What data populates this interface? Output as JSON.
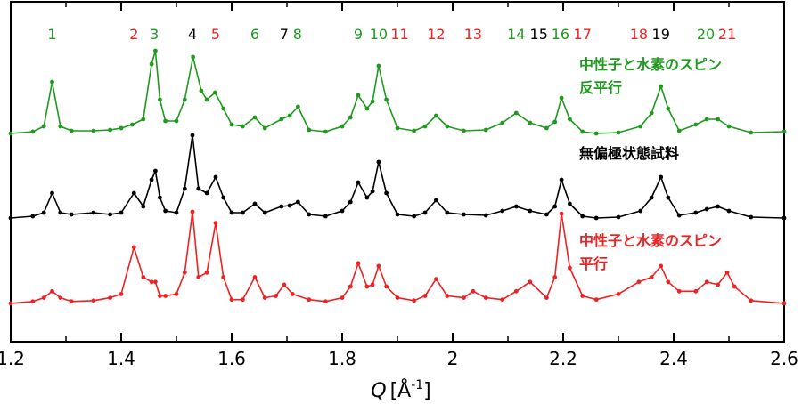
{
  "chart_data": {
    "type": "line",
    "xlabel": "Q [Å⁻¹]",
    "xlabel_symbol": "Q",
    "xlabel_unit": "[Å",
    "xlabel_exp": "-1",
    "xlabel_close": "]",
    "xlim": [
      1.2,
      2.6
    ],
    "x_ticks": [
      1.2,
      1.4,
      1.6,
      1.8,
      2.0,
      2.2,
      2.4,
      2.6
    ],
    "x_tick_labels": [
      "1.2",
      "1.4",
      "1.6",
      "1.8",
      "2",
      "2.2",
      "2.4",
      "2.6"
    ],
    "y_ticks_shown": false,
    "grid": false,
    "colors": {
      "antiparallel": "#1f9a1f",
      "unpolarized": "#000000",
      "parallel": "#ee2222",
      "peak_green": "#1f9a1f",
      "peak_red": "#ee2222",
      "peak_black": "#000000"
    },
    "peak_labels": [
      {
        "label": "1",
        "q": 1.275,
        "color": "green"
      },
      {
        "label": "2",
        "q": 1.423,
        "color": "red"
      },
      {
        "label": "3",
        "q": 1.46,
        "color": "green"
      },
      {
        "label": "4",
        "q": 1.529,
        "color": "black"
      },
      {
        "label": "5",
        "q": 1.571,
        "color": "red"
      },
      {
        "label": "6",
        "q": 1.642,
        "color": "green"
      },
      {
        "label": "7",
        "q": 1.695,
        "color": "black"
      },
      {
        "label": "8",
        "q": 1.719,
        "color": "green"
      },
      {
        "label": "9",
        "q": 1.829,
        "color": "green"
      },
      {
        "label": "10",
        "q": 1.866,
        "color": "green"
      },
      {
        "label": "11",
        "q": 1.904,
        "color": "red"
      },
      {
        "label": "12",
        "q": 1.97,
        "color": "red"
      },
      {
        "label": "13",
        "q": 2.037,
        "color": "red"
      },
      {
        "label": "14",
        "q": 2.115,
        "color": "green"
      },
      {
        "label": "15",
        "q": 2.156,
        "color": "black"
      },
      {
        "label": "16",
        "q": 2.195,
        "color": "green"
      },
      {
        "label": "17",
        "q": 2.235,
        "color": "red"
      },
      {
        "label": "18",
        "q": 2.337,
        "color": "red"
      },
      {
        "label": "19",
        "q": 2.377,
        "color": "black"
      },
      {
        "label": "20",
        "q": 2.458,
        "color": "green"
      },
      {
        "label": "21",
        "q": 2.497,
        "color": "red"
      }
    ],
    "series": [
      {
        "name": "中性子と水素のスピン反平行",
        "label_lines": [
          "中性子と水素のスピン",
          "反平行"
        ],
        "color": "green",
        "x": [
          1.2,
          1.24,
          1.26,
          1.275,
          1.29,
          1.31,
          1.35,
          1.38,
          1.4,
          1.42,
          1.44,
          1.455,
          1.462,
          1.47,
          1.48,
          1.5,
          1.515,
          1.53,
          1.545,
          1.555,
          1.57,
          1.585,
          1.6,
          1.62,
          1.642,
          1.66,
          1.69,
          1.705,
          1.72,
          1.74,
          1.77,
          1.8,
          1.815,
          1.829,
          1.845,
          1.855,
          1.866,
          1.88,
          1.9,
          1.93,
          1.95,
          1.97,
          1.99,
          2.02,
          2.06,
          2.09,
          2.115,
          2.14,
          2.17,
          2.185,
          2.197,
          2.212,
          2.235,
          2.26,
          2.3,
          2.34,
          2.36,
          2.377,
          2.39,
          2.41,
          2.44,
          2.46,
          2.48,
          2.5,
          2.54,
          2.6
        ],
        "y": [
          0.02,
          0.04,
          0.1,
          0.6,
          0.1,
          0.05,
          0.05,
          0.06,
          0.08,
          0.12,
          0.18,
          0.8,
          0.95,
          0.4,
          0.16,
          0.16,
          0.4,
          0.88,
          0.5,
          0.4,
          0.48,
          0.3,
          0.12,
          0.1,
          0.2,
          0.08,
          0.18,
          0.22,
          0.32,
          0.06,
          0.04,
          0.1,
          0.2,
          0.45,
          0.3,
          0.38,
          0.78,
          0.4,
          0.08,
          0.05,
          0.1,
          0.22,
          0.1,
          0.05,
          0.06,
          0.14,
          0.25,
          0.14,
          0.08,
          0.15,
          0.42,
          0.18,
          0.04,
          0.02,
          0.03,
          0.1,
          0.25,
          0.55,
          0.3,
          0.05,
          0.12,
          0.18,
          0.18,
          0.1,
          0.03,
          0.04
        ]
      },
      {
        "name": "無偏極状態試料",
        "label_lines": [
          "無偏極状態試料"
        ],
        "color": "black",
        "x": [
          1.2,
          1.24,
          1.26,
          1.275,
          1.29,
          1.31,
          1.35,
          1.38,
          1.4,
          1.423,
          1.44,
          1.455,
          1.462,
          1.47,
          1.48,
          1.5,
          1.515,
          1.529,
          1.54,
          1.555,
          1.571,
          1.585,
          1.6,
          1.62,
          1.642,
          1.66,
          1.69,
          1.705,
          1.72,
          1.74,
          1.77,
          1.8,
          1.815,
          1.829,
          1.845,
          1.855,
          1.866,
          1.88,
          1.9,
          1.93,
          1.95,
          1.97,
          1.99,
          2.02,
          2.06,
          2.09,
          2.115,
          2.14,
          2.17,
          2.185,
          2.197,
          2.212,
          2.235,
          2.26,
          2.3,
          2.34,
          2.36,
          2.377,
          2.39,
          2.41,
          2.44,
          2.46,
          2.48,
          2.5,
          2.54,
          2.6
        ],
        "y": [
          0.02,
          0.04,
          0.08,
          0.3,
          0.08,
          0.06,
          0.08,
          0.06,
          0.08,
          0.3,
          0.15,
          0.45,
          0.55,
          0.25,
          0.1,
          0.08,
          0.35,
          0.95,
          0.35,
          0.3,
          0.48,
          0.25,
          0.08,
          0.08,
          0.18,
          0.08,
          0.15,
          0.16,
          0.2,
          0.06,
          0.04,
          0.1,
          0.2,
          0.42,
          0.25,
          0.32,
          0.65,
          0.3,
          0.06,
          0.04,
          0.08,
          0.22,
          0.08,
          0.06,
          0.05,
          0.1,
          0.15,
          0.1,
          0.06,
          0.15,
          0.45,
          0.18,
          0.04,
          0.02,
          0.03,
          0.1,
          0.25,
          0.48,
          0.25,
          0.05,
          0.08,
          0.12,
          0.15,
          0.1,
          0.03,
          0.02
        ]
      },
      {
        "name": "中性子と水素のスピン平行",
        "label_lines": [
          "中性子と水素のスピン",
          "平行"
        ],
        "color": "red",
        "x": [
          1.2,
          1.24,
          1.26,
          1.275,
          1.29,
          1.31,
          1.35,
          1.38,
          1.4,
          1.423,
          1.44,
          1.455,
          1.462,
          1.47,
          1.48,
          1.5,
          1.515,
          1.529,
          1.54,
          1.555,
          1.571,
          1.585,
          1.6,
          1.62,
          1.642,
          1.66,
          1.68,
          1.695,
          1.71,
          1.74,
          1.77,
          1.8,
          1.815,
          1.829,
          1.845,
          1.855,
          1.866,
          1.88,
          1.9,
          1.93,
          1.95,
          1.97,
          1.99,
          2.02,
          2.037,
          2.06,
          2.09,
          2.115,
          2.14,
          2.17,
          2.185,
          2.197,
          2.212,
          2.235,
          2.26,
          2.3,
          2.337,
          2.36,
          2.377,
          2.39,
          2.41,
          2.44,
          2.46,
          2.48,
          2.497,
          2.51,
          2.54,
          2.6
        ],
        "y": [
          0.02,
          0.04,
          0.08,
          0.15,
          0.08,
          0.04,
          0.05,
          0.08,
          0.12,
          0.62,
          0.3,
          0.25,
          0.25,
          0.1,
          0.1,
          0.12,
          0.35,
          1.0,
          0.3,
          0.35,
          0.88,
          0.3,
          0.06,
          0.06,
          0.3,
          0.08,
          0.1,
          0.22,
          0.12,
          0.06,
          0.04,
          0.08,
          0.2,
          0.45,
          0.2,
          0.22,
          0.42,
          0.2,
          0.08,
          0.05,
          0.1,
          0.28,
          0.1,
          0.08,
          0.15,
          0.08,
          0.06,
          0.15,
          0.25,
          0.08,
          0.3,
          0.98,
          0.4,
          0.1,
          0.06,
          0.12,
          0.25,
          0.3,
          0.42,
          0.25,
          0.15,
          0.15,
          0.25,
          0.22,
          0.35,
          0.2,
          0.05,
          0.02
        ]
      }
    ]
  }
}
